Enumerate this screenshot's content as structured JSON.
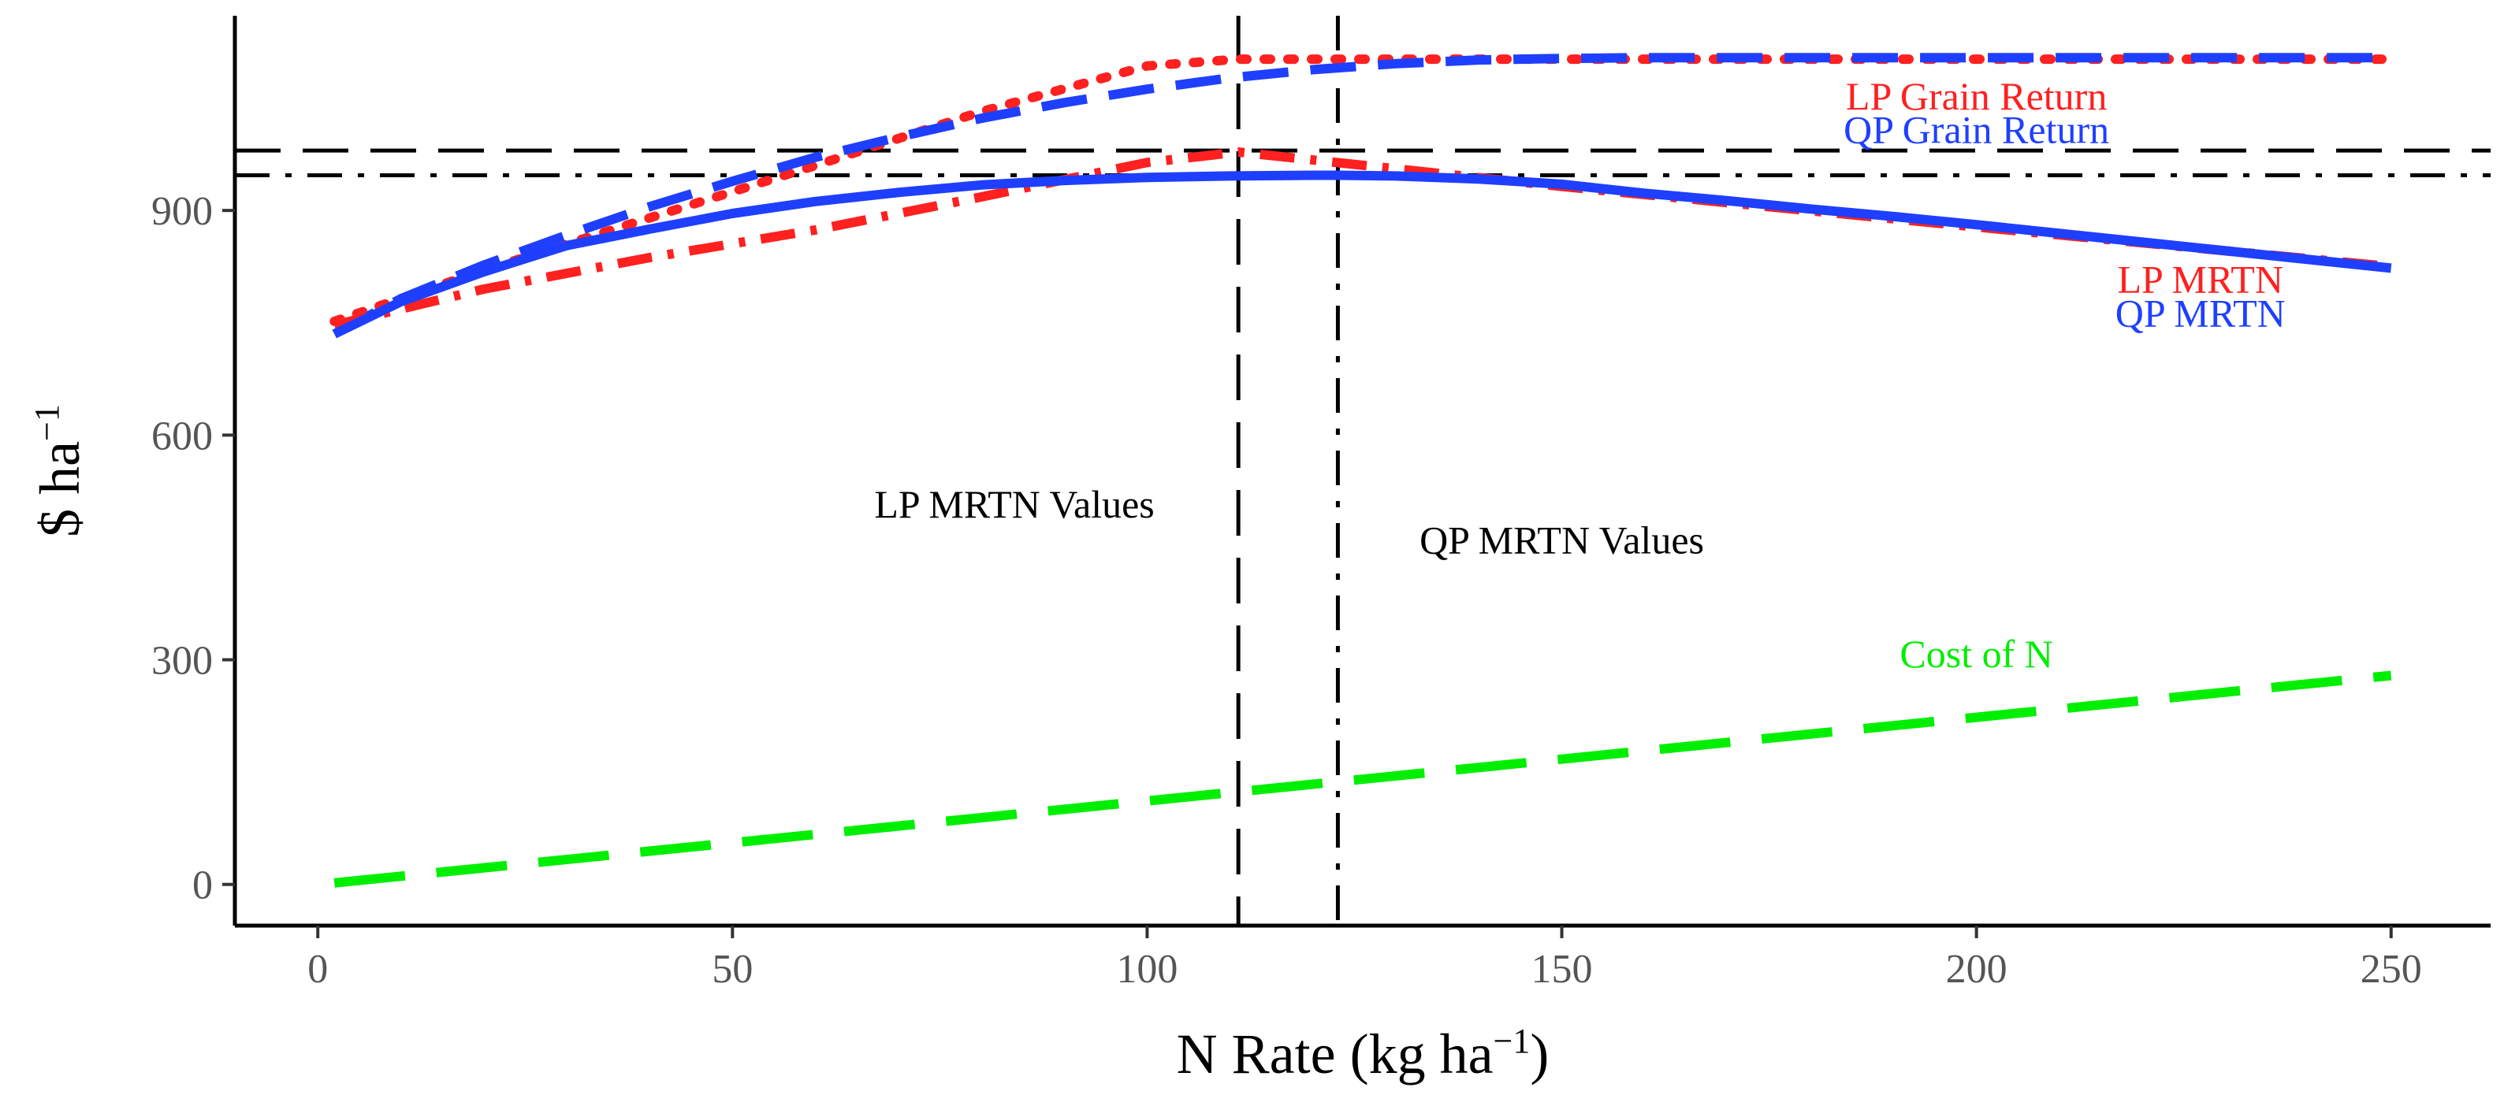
{
  "chart_data": {
    "type": "line",
    "title": "",
    "xlabel": "N Rate (kg ha",
    "xlabel_sup": "−1",
    "xlabel_close": ")",
    "ylabel": "$ ha",
    "ylabel_sup": "−1",
    "xlim": [
      -10,
      262
    ],
    "ylim": [
      -55,
      1160
    ],
    "xticks": [
      0,
      50,
      100,
      150,
      200,
      250
    ],
    "yticks": [
      0,
      300,
      600,
      900
    ],
    "grid": false,
    "legend": "none",
    "series": [
      {
        "label": "LP Grain Return",
        "color": "#ff2020",
        "dash": "dotted",
        "x": [
          2,
          20,
          40,
          60,
          80,
          100,
          111,
          150,
          200,
          250
        ],
        "y": [
          752,
          820,
          890,
          960,
          1032,
          1093,
          1102,
          1102,
          1102,
          1102
        ]
      },
      {
        "label": "QP Grain Return",
        "color": "#1f3fff",
        "dash": "dashed",
        "x": [
          2,
          10,
          20,
          30,
          40,
          50,
          60,
          70,
          80,
          90,
          100,
          110,
          120,
          130,
          140,
          150,
          160,
          170,
          180,
          190,
          200,
          250
        ],
        "y": [
          735,
          782,
          827,
          867,
          905,
          939,
          971,
          998,
          1023,
          1044,
          1062,
          1077,
          1088,
          1096,
          1101,
          1103,
          1104,
          1104,
          1104,
          1104,
          1104,
          1104
        ]
      },
      {
        "label": "LP MRTN",
        "color": "#ff2020",
        "dash": "dashdot",
        "x": [
          2,
          20,
          40,
          60,
          80,
          100,
          111,
          150,
          200,
          250
        ],
        "y": [
          747,
          795,
          837,
          874,
          918,
          964,
          978,
          932,
          878,
          825
        ]
      },
      {
        "label": "QP MRTN",
        "color": "#1f3fff",
        "dash": "solid",
        "x": [
          2,
          10,
          20,
          30,
          40,
          50,
          60,
          70,
          80,
          90,
          100,
          110,
          120,
          123,
          130,
          140,
          150,
          160,
          170,
          180,
          190,
          200,
          250
        ],
        "y": [
          735,
          778,
          818,
          853,
          875,
          896,
          912,
          924,
          934,
          940,
          944,
          946,
          947,
          947,
          946,
          942,
          935,
          923,
          913,
          902,
          892,
          881,
          823
        ]
      },
      {
        "label": "Cost of N",
        "color": "#00ee00",
        "dash": "longdash",
        "x": [
          2,
          250
        ],
        "y": [
          2,
          279
        ]
      }
    ],
    "reference_lines": [
      {
        "label": "LP MRTN Values",
        "axis": "x",
        "value": 111,
        "dash": "dashed"
      },
      {
        "label": "QP MRTN Values",
        "axis": "x",
        "value": 123,
        "dash": "dashdot"
      },
      {
        "axis": "y",
        "value": 980,
        "dash": "dashed"
      },
      {
        "axis": "y",
        "value": 947,
        "dash": "dashdot"
      }
    ],
    "annotations": [
      {
        "text": "LP Grain Return",
        "color": "#ff2020",
        "x": 200,
        "y": 1035
      },
      {
        "text": "QP Grain Return",
        "color": "#1f3fff",
        "x": 200,
        "y": 990
      },
      {
        "text": "LP MRTN",
        "color": "#ff2020",
        "x": 227,
        "y": 790
      },
      {
        "text": "QP MRTN",
        "color": "#1f3fff",
        "x": 227,
        "y": 745
      },
      {
        "text": "LP MRTN Values",
        "color": "#000000",
        "x": 84,
        "y": 490
      },
      {
        "text": "QP MRTN Values",
        "color": "#000000",
        "x": 150,
        "y": 442
      },
      {
        "text": "Cost of N",
        "color": "#00ee00",
        "x": 200,
        "y": 290
      }
    ]
  }
}
